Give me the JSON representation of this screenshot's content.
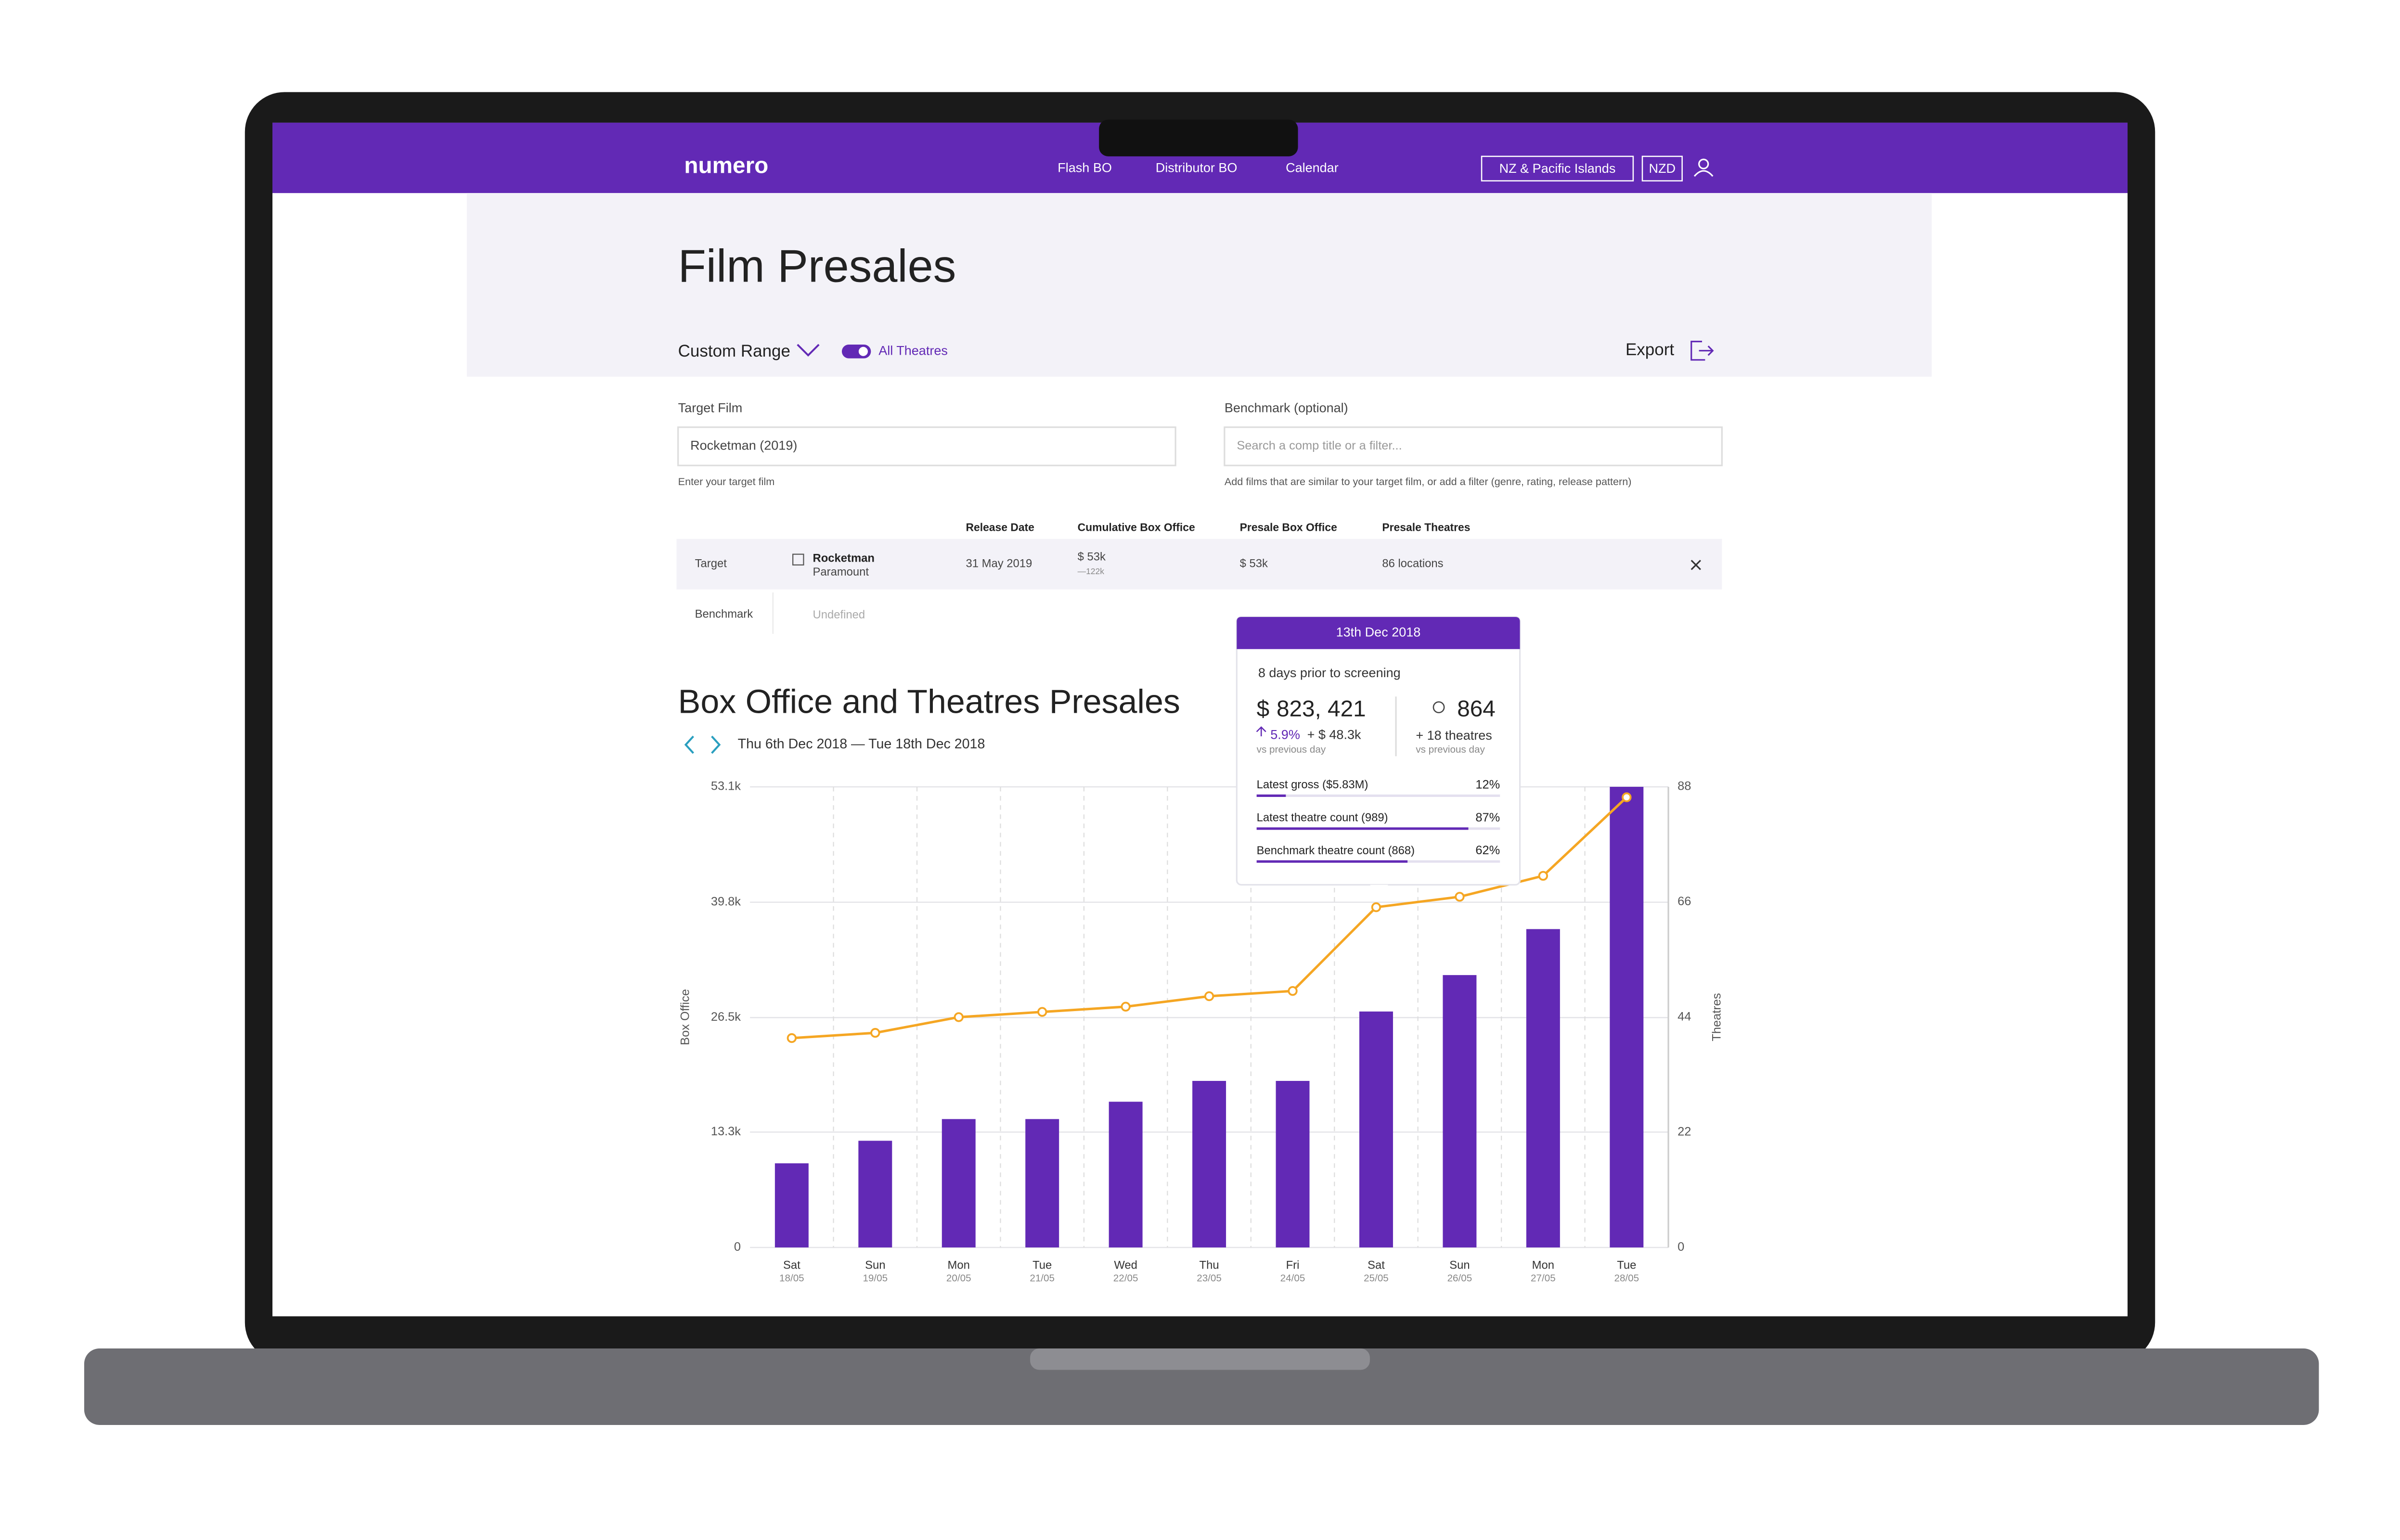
{
  "nav": {
    "logo": "numero",
    "links": [
      "Flash BO",
      "Distributor BO",
      "Calendar"
    ],
    "region": "NZ & Pacific Islands",
    "currency": "NZD"
  },
  "header": {
    "title": "Film Presales",
    "range": "Custom Range",
    "toggle": "All Theatres",
    "export": "Export"
  },
  "form": {
    "target_label": "Target Film",
    "target_value": "Rocketman (2019)",
    "target_help": "Enter your target film",
    "benchmark_label": "Benchmark (optional)",
    "benchmark_placeholder": "Search a comp title or a filter...",
    "benchmark_help": "Add films that are similar to your target film, or add a filter (genre, rating, release pattern)"
  },
  "table": {
    "columns": [
      "Release Date",
      "Cumulative Box Office",
      "Presale Box Office",
      "Presale Theatres"
    ],
    "target": {
      "label": "Target",
      "film": "Rocketman",
      "studio": "Paramount",
      "release_date": "31 May 2019",
      "cumulative": "$ 53k",
      "cumulative_sub": "—122k",
      "presale_bo": "$ 53k",
      "presale_theatres": "86 locations"
    },
    "benchmark": {
      "label": "Benchmark",
      "film": "Undefined"
    }
  },
  "section": {
    "title": "Box Office and Theatres Presales",
    "date_range": "Thu 6th Dec 2018 — Tue 18th Dec 2018"
  },
  "tooltip": {
    "date": "13th Dec 2018",
    "subtitle": "8 days prior to screening",
    "currency": "$",
    "gross": "823, 421",
    "change_pct": "5.9%",
    "change_abs": "+ $ 48.3k",
    "gross_note": "vs previous day",
    "theatres": "864",
    "theatres_change": "+ 18 theatres",
    "theatres_note": "vs previous day",
    "rows": [
      {
        "label": "Latest gross ($5.83M)",
        "value": 12,
        "value_label": "12%"
      },
      {
        "label": "Latest theatre count (989)",
        "value": 87,
        "value_label": "87%"
      },
      {
        "label": "Benchmark theatre count (868)",
        "value": 62,
        "value_label": "62%"
      }
    ]
  },
  "chart_data": {
    "type": "bar-line",
    "categories": [
      "Sat",
      "Sun",
      "Mon",
      "Tue",
      "Wed",
      "Thu",
      "Fri",
      "Sat",
      "Sun",
      "Mon",
      "Tue"
    ],
    "category_sublabels": [
      "18/05",
      "19/05",
      "20/05",
      "21/05",
      "22/05",
      "23/05",
      "24/05",
      "25/05",
      "26/05",
      "27/05",
      "28/05"
    ],
    "y_label": "Box Office",
    "y2_label": "Theatres",
    "ylim": [
      0,
      53100
    ],
    "yticks": [
      0,
      {
        "value": 13300,
        "label": "13.3k"
      },
      {
        "value": 26500,
        "label": "26.5k"
      },
      {
        "value": 39800,
        "label": "39.8k"
      },
      {
        "value": 53100,
        "label": "53.1k"
      }
    ],
    "y2lim": [
      0,
      88
    ],
    "y2ticks": [
      0,
      22,
      44,
      66,
      88
    ],
    "grid": true,
    "series": [
      {
        "name": "Box Office",
        "type": "bar",
        "color": "#6229b5",
        "values": [
          9700,
          12300,
          14800,
          14800,
          16800,
          19200,
          19200,
          27200,
          31400,
          36700,
          53100
        ]
      },
      {
        "name": "Theatres",
        "type": "line",
        "axis": "y2",
        "color": "#f5a623",
        "values": [
          40,
          41,
          44,
          45,
          46,
          48,
          49,
          65,
          67,
          71,
          86
        ]
      }
    ]
  }
}
